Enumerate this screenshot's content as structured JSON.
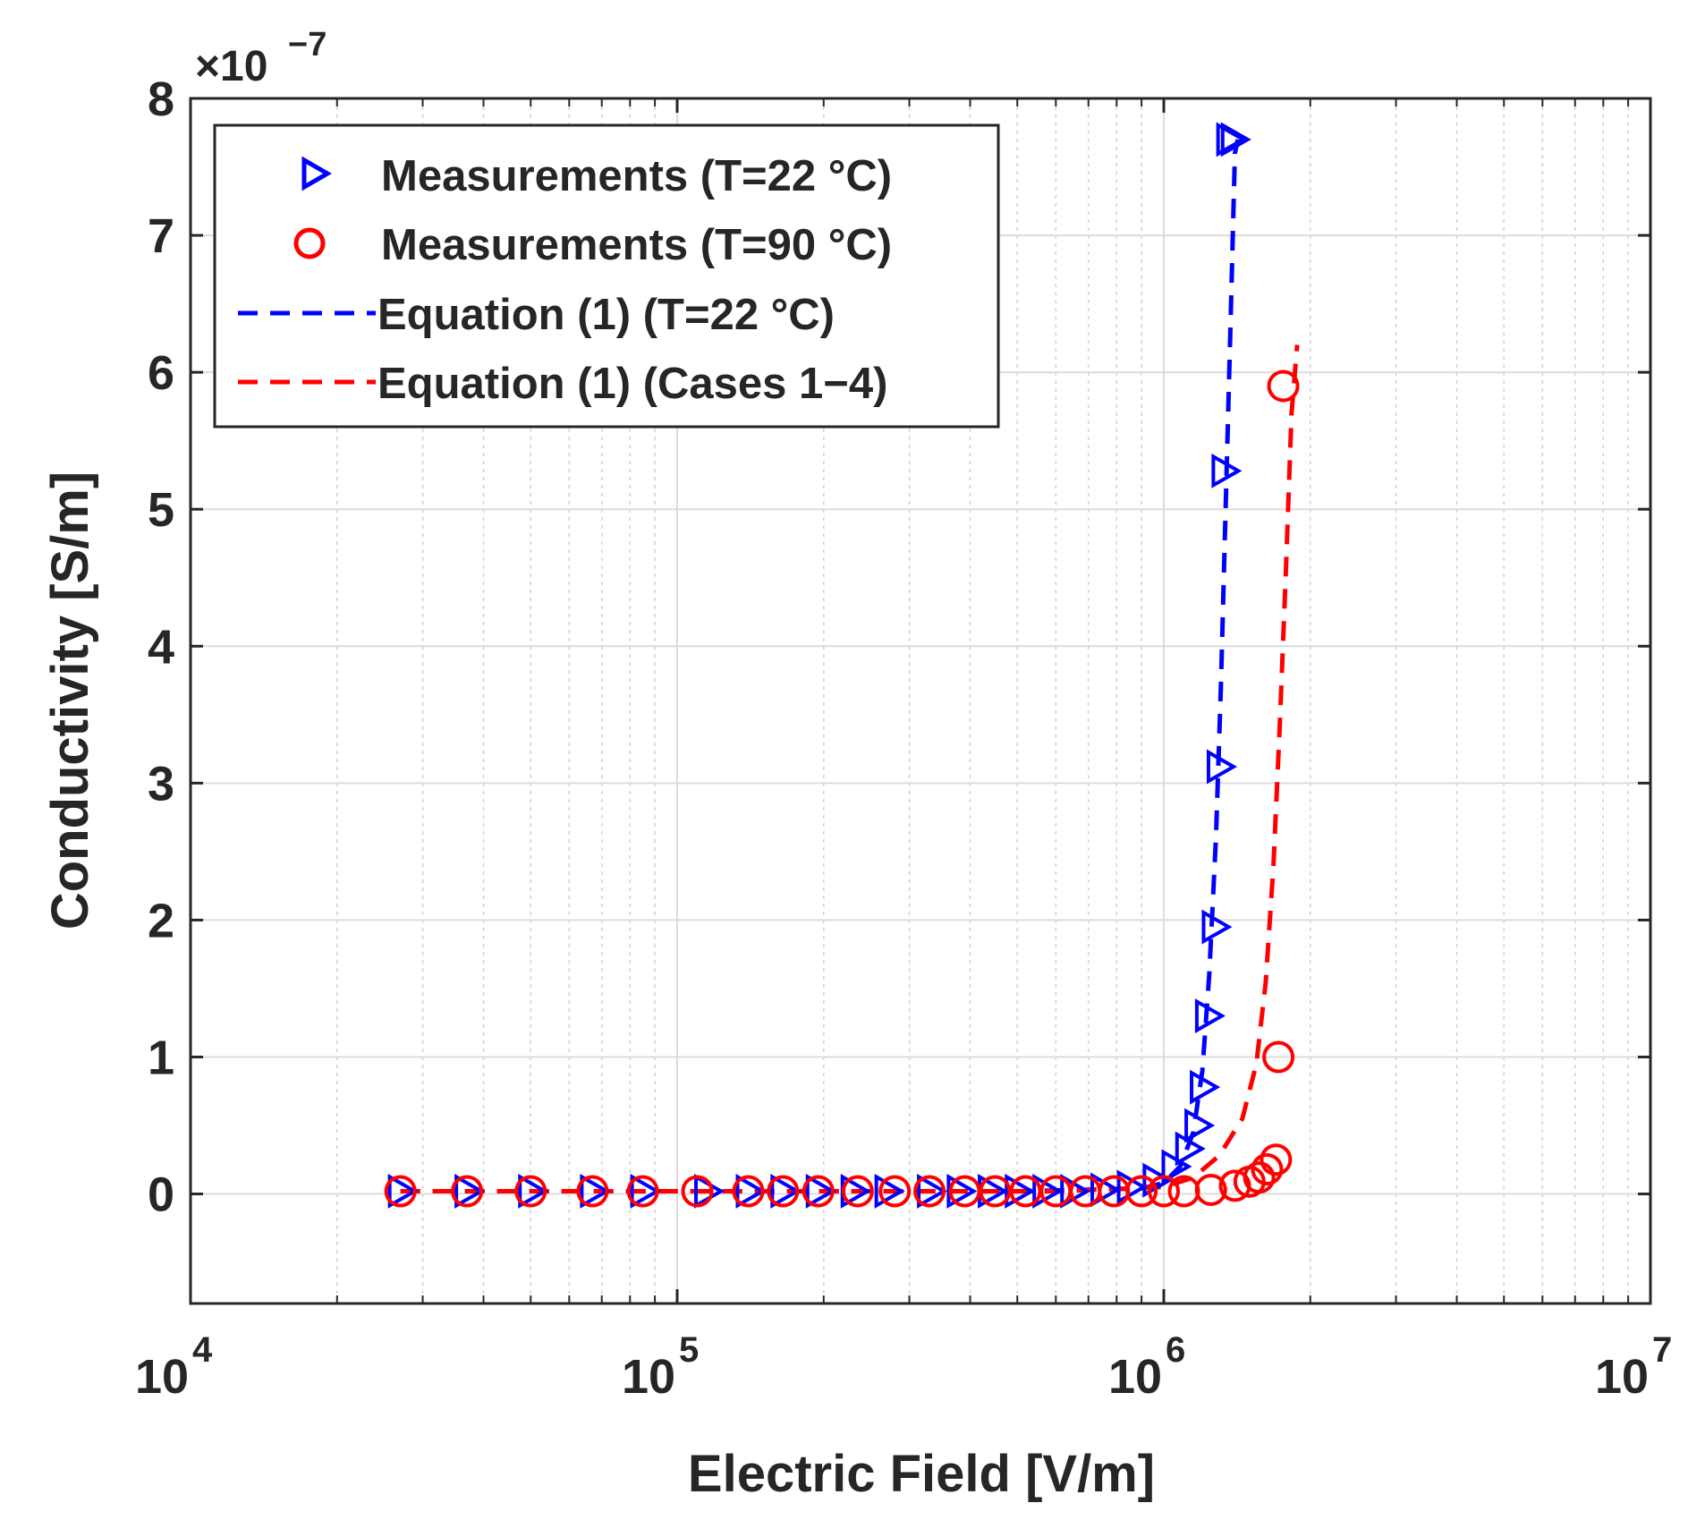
{
  "chart_data": {
    "type": "scatter",
    "title": "",
    "xlabel": "Electric Field [V/m]",
    "ylabel": "Conductivity [S/m]",
    "xscale": "log",
    "xlim": [
      10000,
      10000000
    ],
    "ylim": [
      -0.8,
      8
    ],
    "y_multiplier_base": "×10",
    "y_multiplier_exponent": "−7",
    "x_ticks": [
      {
        "value": 10000,
        "base": "10",
        "exp": "4"
      },
      {
        "value": 100000,
        "base": "10",
        "exp": "5"
      },
      {
        "value": 1000000,
        "base": "10",
        "exp": "6"
      },
      {
        "value": 10000000,
        "base": "10",
        "exp": "7"
      }
    ],
    "y_ticks": [
      0,
      1,
      2,
      3,
      4,
      5,
      6,
      7,
      8
    ],
    "grid": true,
    "legend_position": "top-left",
    "series": [
      {
        "name": "Measurements (T=22 °C)",
        "kind": "markers",
        "marker": "triangle-right",
        "color": "#0000ff",
        "x": [
          27000,
          37000,
          50000,
          67000,
          85000,
          115000,
          140000,
          165000,
          195000,
          230000,
          270000,
          330000,
          380000,
          440000,
          500000,
          570000,
          650000,
          750000,
          850000,
          960000,
          1050000,
          1120000,
          1170000,
          1200000,
          1230000,
          1270000,
          1300000,
          1330000,
          1360000,
          1390000
        ],
        "y": [
          0.02,
          0.02,
          0.02,
          0.02,
          0.02,
          0.02,
          0.02,
          0.02,
          0.02,
          0.02,
          0.02,
          0.02,
          0.02,
          0.02,
          0.02,
          0.02,
          0.02,
          0.03,
          0.05,
          0.1,
          0.2,
          0.33,
          0.5,
          0.78,
          1.3,
          1.95,
          3.12,
          5.28,
          7.7,
          7.7
        ]
      },
      {
        "name": "Measurements (T=90 °C)",
        "kind": "markers",
        "marker": "circle",
        "color": "#ff0000",
        "x": [
          27000,
          37000,
          50000,
          67000,
          85000,
          110000,
          140000,
          165000,
          195000,
          235000,
          280000,
          330000,
          390000,
          450000,
          520000,
          600000,
          690000,
          790000,
          900000,
          1000000,
          1100000,
          1250000,
          1400000,
          1500000,
          1570000,
          1630000,
          1700000,
          1720000,
          1760000
        ],
        "y": [
          0.02,
          0.02,
          0.02,
          0.02,
          0.02,
          0.02,
          0.02,
          0.02,
          0.02,
          0.02,
          0.02,
          0.02,
          0.02,
          0.02,
          0.02,
          0.02,
          0.02,
          0.02,
          0.02,
          0.02,
          0.02,
          0.03,
          0.06,
          0.09,
          0.12,
          0.18,
          0.25,
          1.0,
          5.9
        ]
      },
      {
        "name": "Equation (1) (T=22 °C)",
        "kind": "dashed-line",
        "color": "#0000ff",
        "x": [
          27000,
          100000,
          500000,
          900000,
          1000000,
          1080000,
          1150000,
          1200000,
          1240000,
          1280000,
          1310000,
          1340000,
          1370000,
          1400000,
          1420000
        ],
        "y": [
          0.02,
          0.02,
          0.02,
          0.04,
          0.08,
          0.2,
          0.45,
          0.9,
          1.6,
          2.6,
          3.7,
          5.0,
          6.3,
          7.6,
          7.7
        ]
      },
      {
        "name": "Equation (1) (Cases 1−4)",
        "kind": "dashed-line",
        "color": "#ff0000",
        "x": [
          27000,
          100000,
          600000,
          1000000,
          1150000,
          1300000,
          1450000,
          1550000,
          1620000,
          1680000,
          1730000,
          1780000,
          1830000,
          1880000
        ],
        "y": [
          0.02,
          0.02,
          0.02,
          0.05,
          0.12,
          0.28,
          0.55,
          0.95,
          1.55,
          2.4,
          3.4,
          4.5,
          5.7,
          6.2
        ]
      }
    ]
  }
}
